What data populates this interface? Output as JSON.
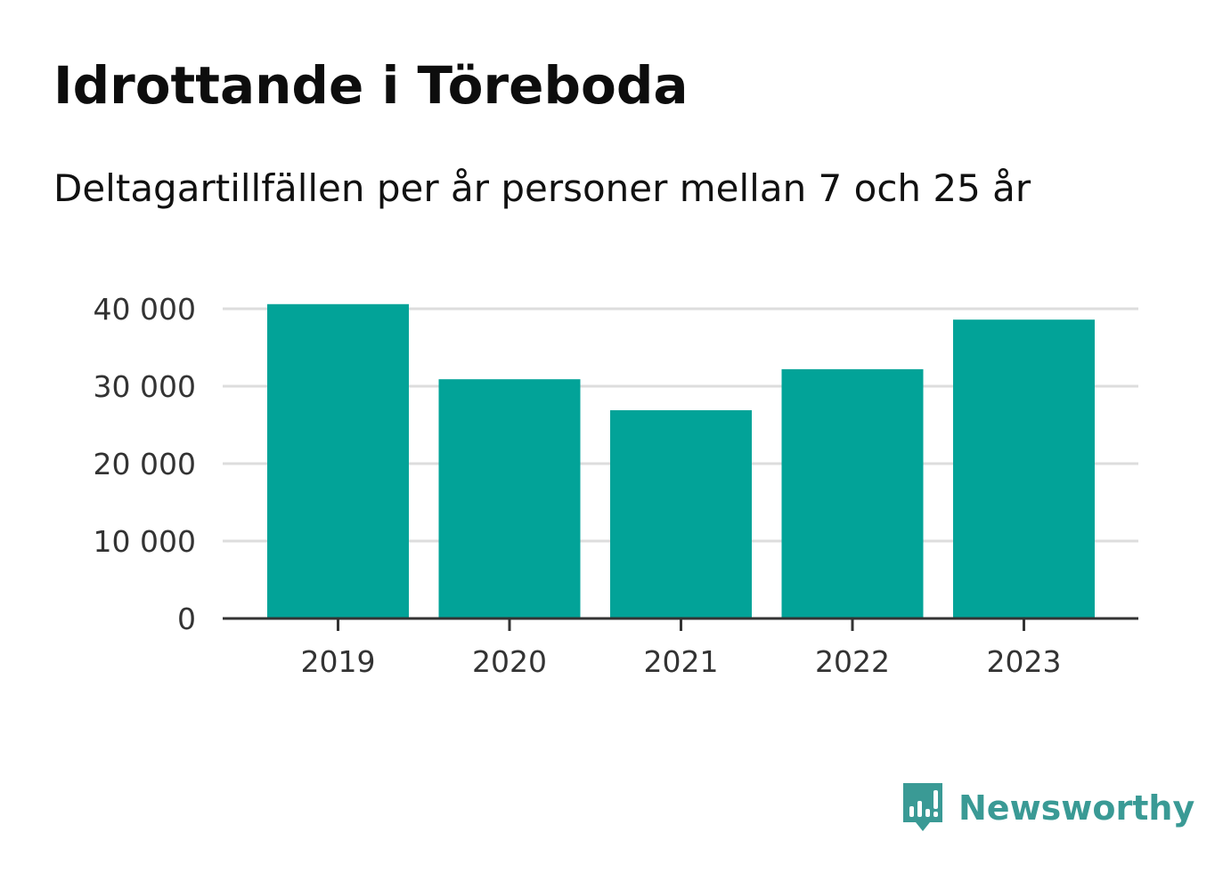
{
  "title": "Idrottande i Töreboda",
  "subtitle": "Deltagartillfällen per år personer mellan 7 och 25 år",
  "brand": {
    "name": "Newsworthy",
    "icon": "newsworthy-bar-chart-icon"
  },
  "colors": {
    "bar": "#02a398",
    "grid": "#dddddd",
    "axis": "#333333",
    "tick_label": "#333333",
    "brand": "#3a9a95"
  },
  "chart_data": {
    "type": "bar",
    "categories": [
      "2019",
      "2020",
      "2021",
      "2022",
      "2023"
    ],
    "values": [
      40600,
      30900,
      26900,
      32200,
      38600
    ],
    "ylim": [
      0,
      40000
    ],
    "yticks": [
      0,
      10000,
      20000,
      30000,
      40000
    ],
    "ytick_labels": [
      "0",
      "10 000",
      "20 000",
      "30 000",
      "40 000"
    ],
    "xlabel": "",
    "ylabel": "",
    "grid": true,
    "legend": "none"
  }
}
